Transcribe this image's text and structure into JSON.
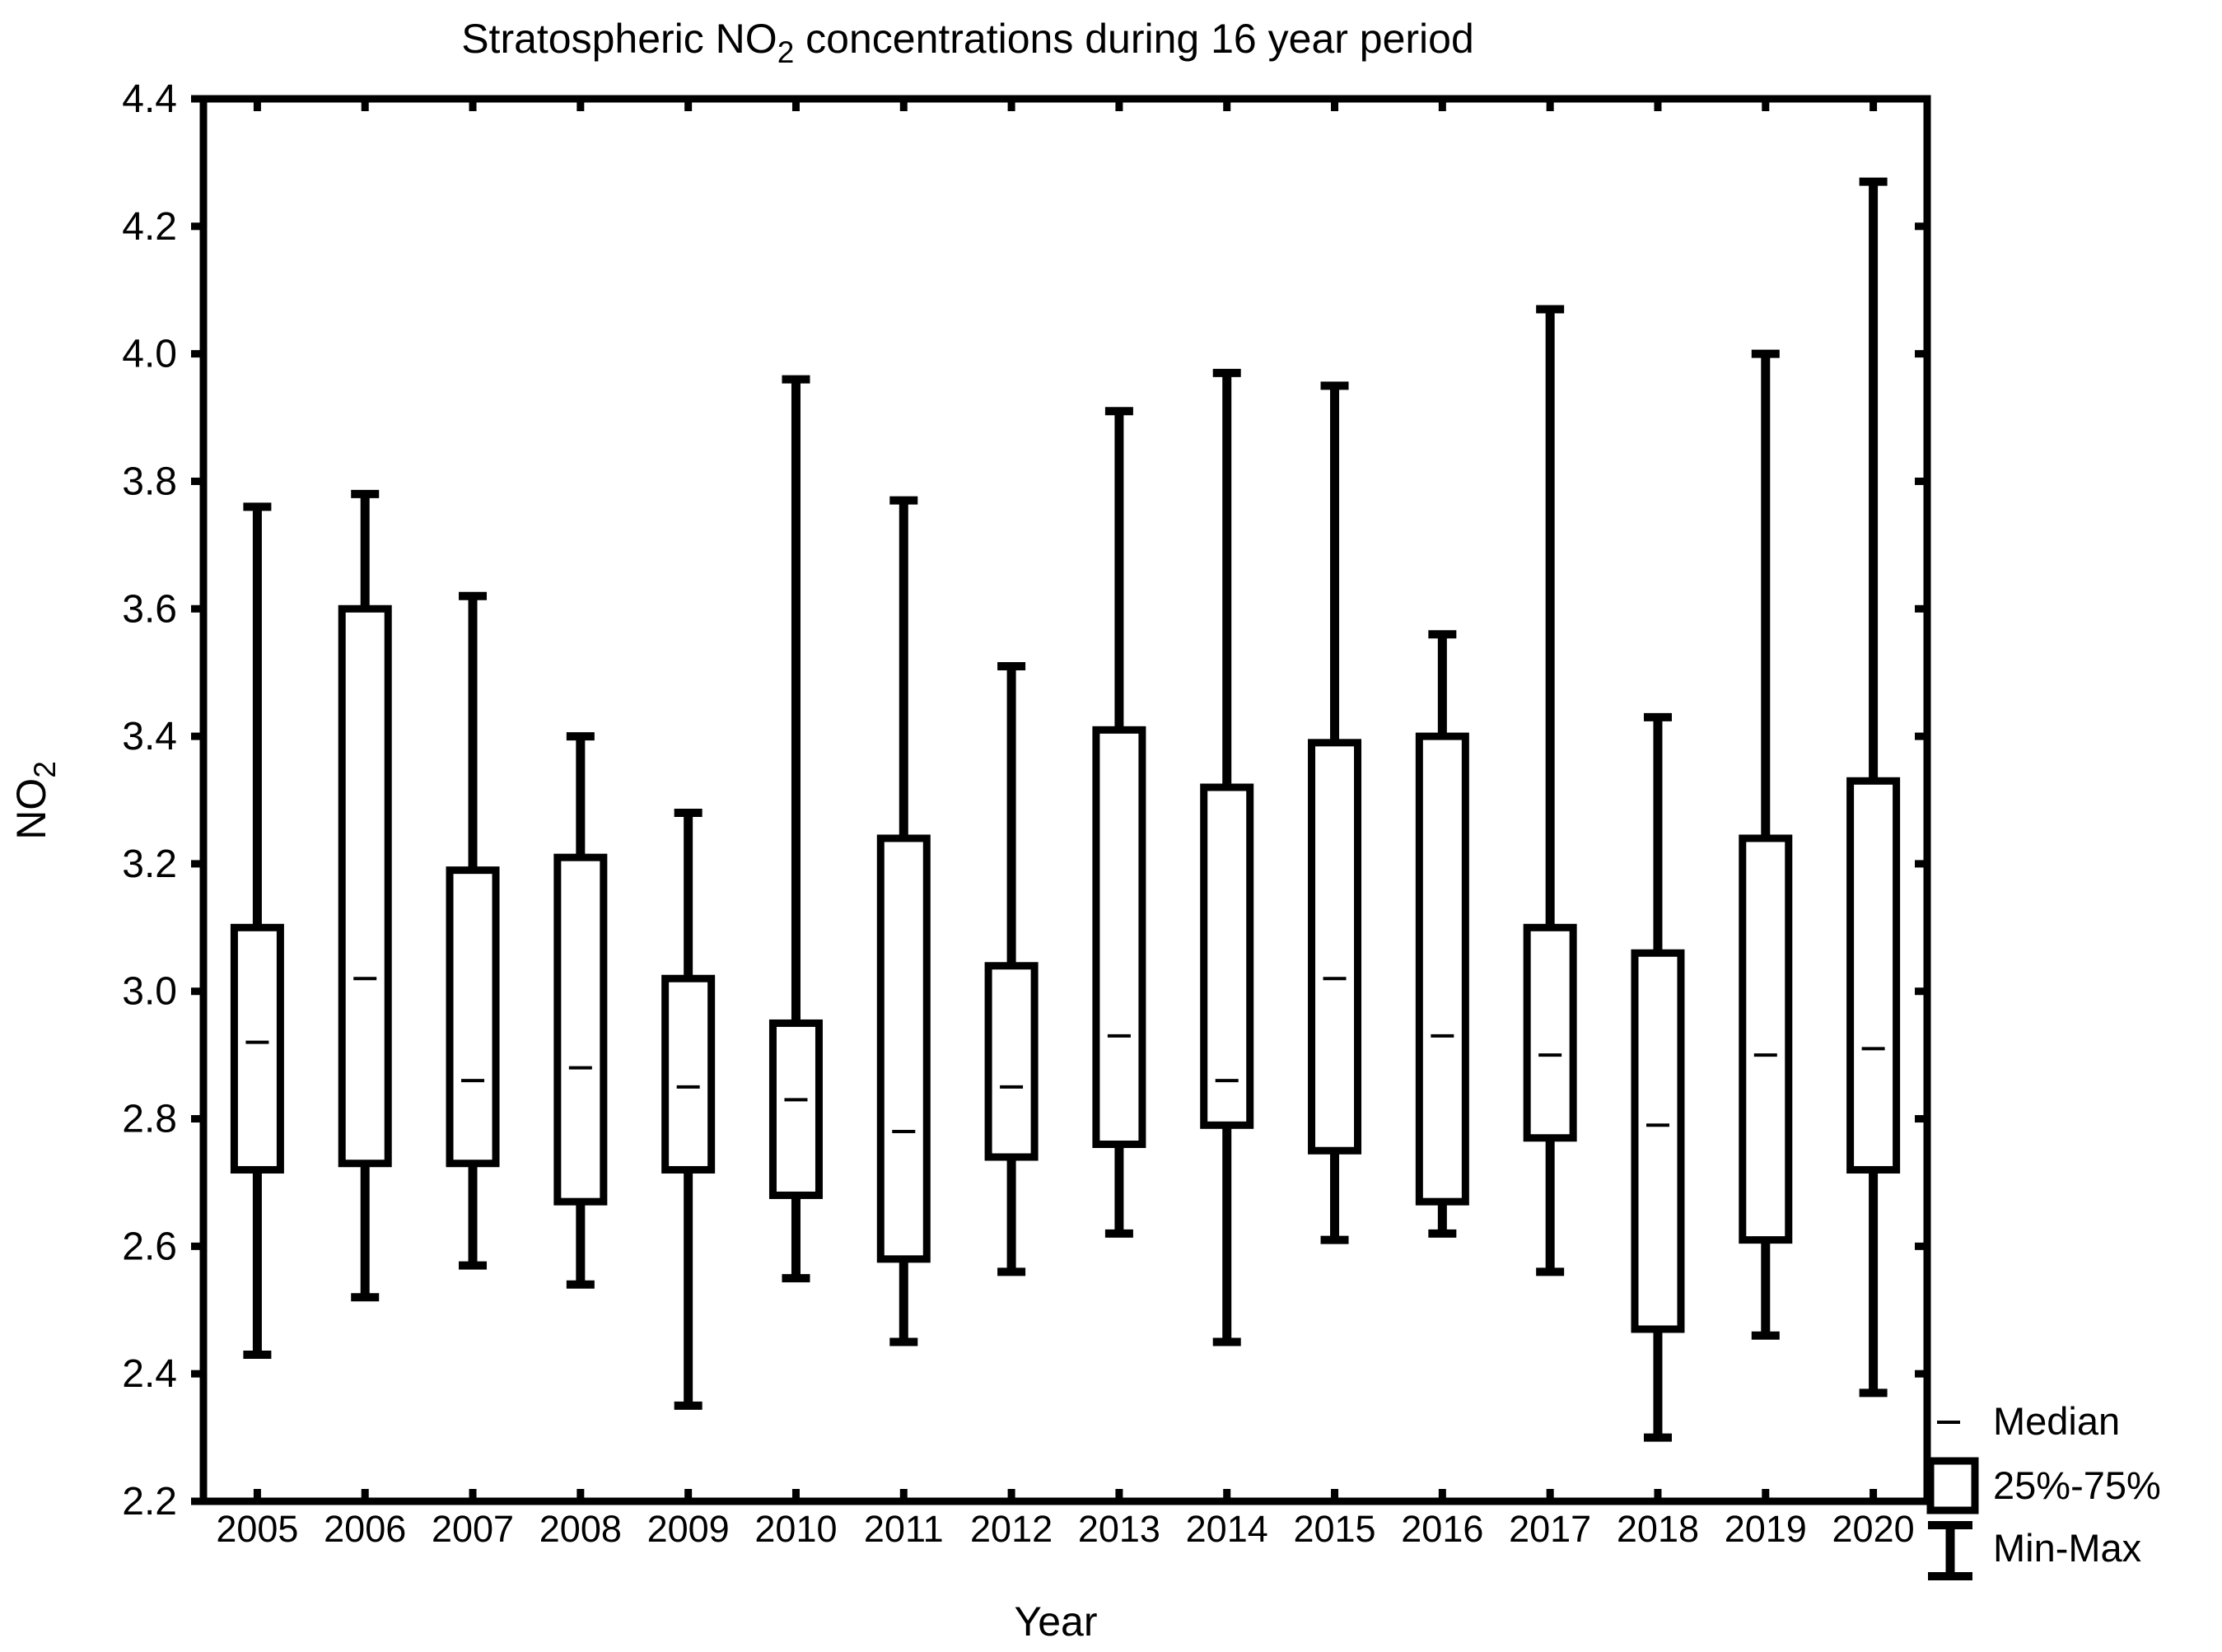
{
  "figure": {
    "title_pre": "Stratospheric NO",
    "title_sub": "2",
    "title_post": " concentrations during 16 year period"
  },
  "chart_data": {
    "type": "box",
    "title": "Stratospheric NO2 concentrations during 16 year period",
    "xlabel": "Year",
    "ylabel_main": "NO",
    "ylabel_sub": "2",
    "ylim": [
      2.2,
      4.4
    ],
    "ytick_step": 0.2,
    "yticks": [
      2.2,
      2.4,
      2.6,
      2.8,
      3.0,
      3.2,
      3.4,
      3.6,
      3.8,
      4.0,
      4.2,
      4.4
    ],
    "categories": [
      "2005",
      "2006",
      "2007",
      "2008",
      "2009",
      "2010",
      "2011",
      "2012",
      "2013",
      "2014",
      "2015",
      "2016",
      "2017",
      "2018",
      "2019",
      "2020"
    ],
    "series": [
      {
        "year": "2005",
        "min": 2.43,
        "q1": 2.72,
        "median": 2.92,
        "q3": 3.1,
        "max": 3.76
      },
      {
        "year": "2006",
        "min": 2.52,
        "q1": 2.73,
        "median": 3.02,
        "q3": 3.6,
        "max": 3.78
      },
      {
        "year": "2007",
        "min": 2.57,
        "q1": 2.73,
        "median": 2.86,
        "q3": 3.19,
        "max": 3.62
      },
      {
        "year": "2008",
        "min": 2.54,
        "q1": 2.67,
        "median": 2.88,
        "q3": 3.21,
        "max": 3.4
      },
      {
        "year": "2009",
        "min": 2.35,
        "q1": 2.72,
        "median": 2.85,
        "q3": 3.02,
        "max": 3.28
      },
      {
        "year": "2010",
        "min": 2.55,
        "q1": 2.68,
        "median": 2.83,
        "q3": 2.95,
        "max": 3.96
      },
      {
        "year": "2011",
        "min": 2.45,
        "q1": 2.58,
        "median": 2.78,
        "q3": 3.24,
        "max": 3.77
      },
      {
        "year": "2012",
        "min": 2.56,
        "q1": 2.74,
        "median": 2.85,
        "q3": 3.04,
        "max": 3.51
      },
      {
        "year": "2013",
        "min": 2.62,
        "q1": 2.76,
        "median": 2.93,
        "q3": 3.41,
        "max": 3.91
      },
      {
        "year": "2014",
        "min": 2.45,
        "q1": 2.79,
        "median": 2.86,
        "q3": 3.32,
        "max": 3.97
      },
      {
        "year": "2015",
        "min": 2.61,
        "q1": 2.75,
        "median": 3.02,
        "q3": 3.39,
        "max": 3.95
      },
      {
        "year": "2016",
        "min": 2.62,
        "q1": 2.67,
        "median": 2.93,
        "q3": 3.4,
        "max": 3.56
      },
      {
        "year": "2017",
        "min": 2.56,
        "q1": 2.77,
        "median": 2.9,
        "q3": 3.1,
        "max": 4.07
      },
      {
        "year": "2018",
        "min": 2.3,
        "q1": 2.47,
        "median": 2.79,
        "q3": 3.06,
        "max": 3.43
      },
      {
        "year": "2019",
        "min": 2.46,
        "q1": 2.61,
        "median": 2.9,
        "q3": 3.24,
        "max": 4.0
      },
      {
        "year": "2020",
        "min": 2.37,
        "q1": 2.72,
        "median": 2.91,
        "q3": 3.33,
        "max": 4.27
      }
    ],
    "legend": [
      {
        "glyph": "median-dash",
        "label": "Median"
      },
      {
        "glyph": "box",
        "label": "25%-75%"
      },
      {
        "glyph": "min-max-whisker",
        "label": "Min-Max"
      }
    ],
    "legend_position": "bottom-right",
    "grid": false,
    "colors": {
      "stroke": "#000000",
      "background": "#ffffff"
    }
  }
}
